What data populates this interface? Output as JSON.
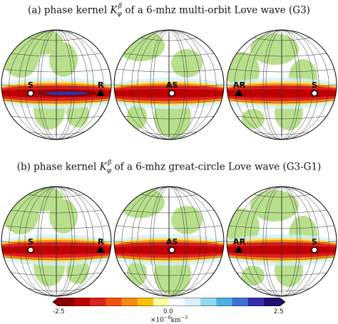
{
  "panel_a": {
    "title_prefix": "(a) phase kernel ",
    "kernel_symbol": "K",
    "kernel_sub": "φ",
    "kernel_sup": "β",
    "title_suffix": " of a 6-mhz multi-orbit Love wave (G3)",
    "globes": [
      {
        "markers": [
          {
            "label": "S",
            "side": "source"
          },
          {
            "label": "R",
            "side": "receiver"
          }
        ]
      },
      {
        "markers": [
          {
            "label": "AS",
            "side": "source"
          }
        ]
      },
      {
        "markers": [
          {
            "label": "AR",
            "side": "receiver"
          },
          {
            "label": "S",
            "side": "source"
          }
        ]
      }
    ]
  },
  "panel_b": {
    "title_prefix": "(b) phase kernel ",
    "kernel_symbol": "K",
    "kernel_sub": "φ",
    "kernel_sup": "β",
    "title_suffix": " of a 6-mhz great-circle Love wave (G3-G1)",
    "globes": [
      {
        "markers": [
          {
            "label": "S",
            "side": "source"
          },
          {
            "label": "R",
            "side": "receiver"
          }
        ]
      },
      {
        "markers": [
          {
            "label": "AS",
            "side": "source"
          }
        ]
      },
      {
        "markers": [
          {
            "label": "AR",
            "side": "receiver"
          },
          {
            "label": "S",
            "side": "source"
          }
        ]
      }
    ]
  },
  "colorbar": {
    "min_label": "-2.5",
    "mid_label": "0.0",
    "max_label": "2.5",
    "unit_base": "×10",
    "unit_exp": "−8",
    "unit_rest": "km",
    "unit_exp2": "−3",
    "colors": [
      "#8b0000",
      "#c00000",
      "#e02020",
      "#f05010",
      "#f58a10",
      "#f8c000",
      "#ffffa0",
      "#ffffff",
      "#d8f0ff",
      "#90d8f0",
      "#50b0e0",
      "#4070d0",
      "#3030b0",
      "#201070"
    ]
  }
}
